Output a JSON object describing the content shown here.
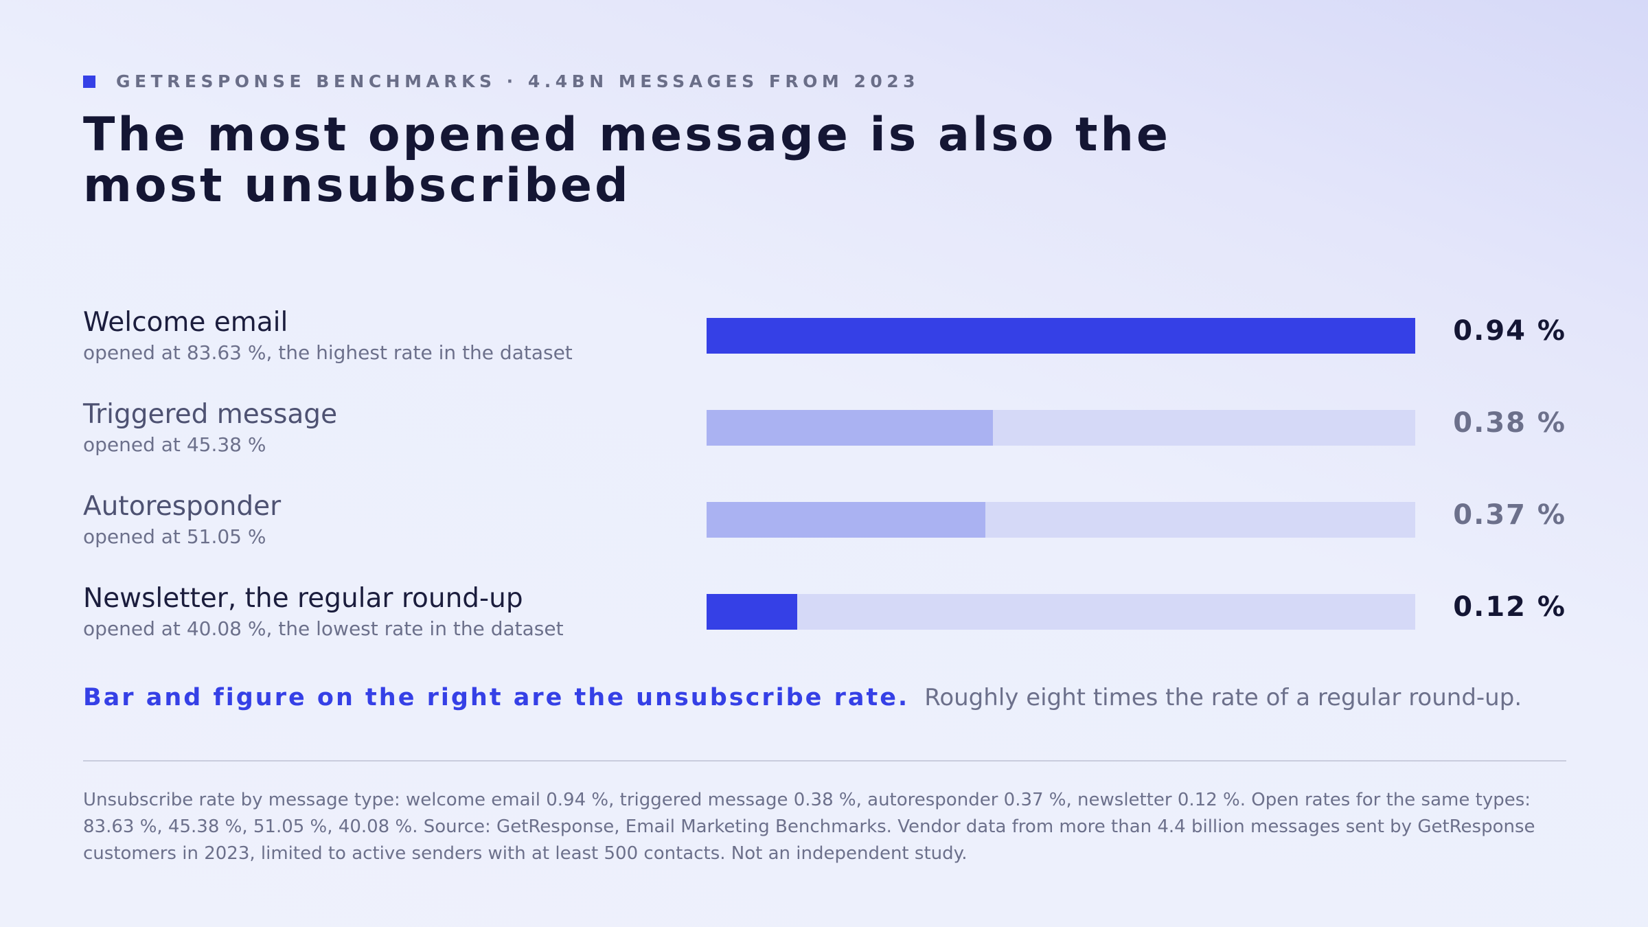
{
  "header": {
    "eyebrow": "GETRESPONSE BENCHMARKS · 4.4BN MESSAGES FROM 2023",
    "title": "The most opened message is also the most unsubscribed"
  },
  "colors": {
    "accent": "#3540e6",
    "muted_bar": "#aab2f2",
    "track": "#d5d9f7",
    "text_dark": "#141634",
    "text_muted": "#6c708b"
  },
  "chart_data": {
    "type": "bar",
    "orientation": "horizontal",
    "categories": [
      "Welcome email",
      "Triggered message",
      "Autoresponder",
      "Newsletter, the regular round-up"
    ],
    "values": [
      0.94,
      0.38,
      0.37,
      0.12
    ],
    "value_labels": [
      "0.94 %",
      "0.38 %",
      "0.37 %",
      "0.12 %"
    ],
    "sublabels": [
      "opened at 83.63 %, the highest rate in the dataset",
      "opened at 45.38 %",
      "opened at 51.05 %",
      "opened at 40.08 %, the lowest rate in the dataset"
    ],
    "highlighted": [
      true,
      false,
      false,
      true
    ],
    "xlim": [
      0,
      0.94
    ]
  },
  "key": {
    "lead": "Bar and figure on the right are the unsubscribe rate.",
    "rest": "Roughly eight times the rate of a regular round-up."
  },
  "footnote": "Unsubscribe rate by message type: welcome email 0.94 %, triggered message 0.38 %, autoresponder 0.37 %, newsletter 0.12 %. Open rates for the same types: 83.63 %, 45.38 %, 51.05 %, 40.08 %. Source: GetResponse, Email Marketing Benchmarks. Vendor data from more than 4.4 billion messages sent by GetResponse customers in 2023, limited to active senders with at least 500 contacts. Not an independent study."
}
